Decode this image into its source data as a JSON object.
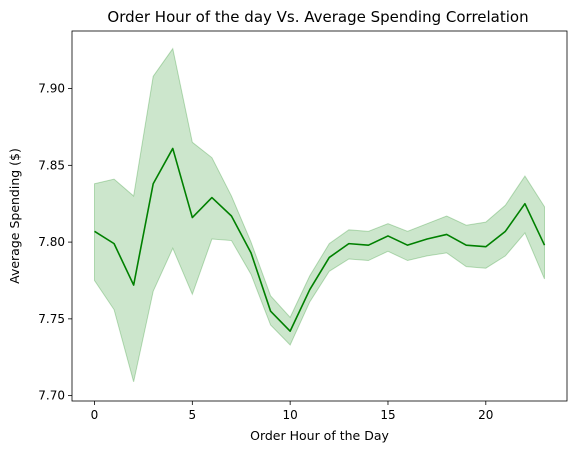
{
  "chart_data": {
    "type": "line",
    "title": "Order Hour of the day Vs. Average Spending Correlation",
    "xlabel": "Order Hour of the Day",
    "ylabel": "Average Spending ($)",
    "xlim": [
      -1.15,
      24.15
    ],
    "ylim": [
      7.6965,
      7.9375
    ],
    "xticks": [
      0,
      5,
      10,
      15,
      20
    ],
    "xtick_labels": [
      "0",
      "5",
      "10",
      "15",
      "20"
    ],
    "yticks": [
      7.7,
      7.75,
      7.8,
      7.85,
      7.9
    ],
    "ytick_labels": [
      "7.70",
      "7.75",
      "7.80",
      "7.85",
      "7.90"
    ],
    "grid": false,
    "legend": "none",
    "colors": {
      "line": "#008000",
      "band": "#008000",
      "band_opacity": 0.2
    },
    "series": [
      {
        "x": [
          0,
          1,
          2,
          3,
          4,
          5,
          6,
          7,
          8,
          9,
          10,
          11,
          12,
          13,
          14,
          15,
          16,
          17,
          18,
          19,
          20,
          21,
          22,
          23
        ],
        "values": [
          7.807,
          7.799,
          7.772,
          7.838,
          7.861,
          7.816,
          7.829,
          7.817,
          7.793,
          7.755,
          7.742,
          7.769,
          7.79,
          7.799,
          7.798,
          7.804,
          7.798,
          7.802,
          7.805,
          7.798,
          7.797,
          7.807,
          7.825,
          7.798
        ],
        "lower": [
          7.775,
          7.756,
          7.709,
          7.768,
          7.796,
          7.766,
          7.802,
          7.801,
          7.779,
          7.746,
          7.733,
          7.761,
          7.781,
          7.789,
          7.788,
          7.794,
          7.788,
          7.791,
          7.793,
          7.784,
          7.783,
          7.791,
          7.806,
          7.776
        ],
        "upper": [
          7.838,
          7.841,
          7.83,
          7.908,
          7.926,
          7.865,
          7.855,
          7.83,
          7.8,
          7.765,
          7.751,
          7.778,
          7.799,
          7.808,
          7.807,
          7.812,
          7.807,
          7.812,
          7.817,
          7.811,
          7.813,
          7.824,
          7.843,
          7.823
        ]
      }
    ]
  }
}
